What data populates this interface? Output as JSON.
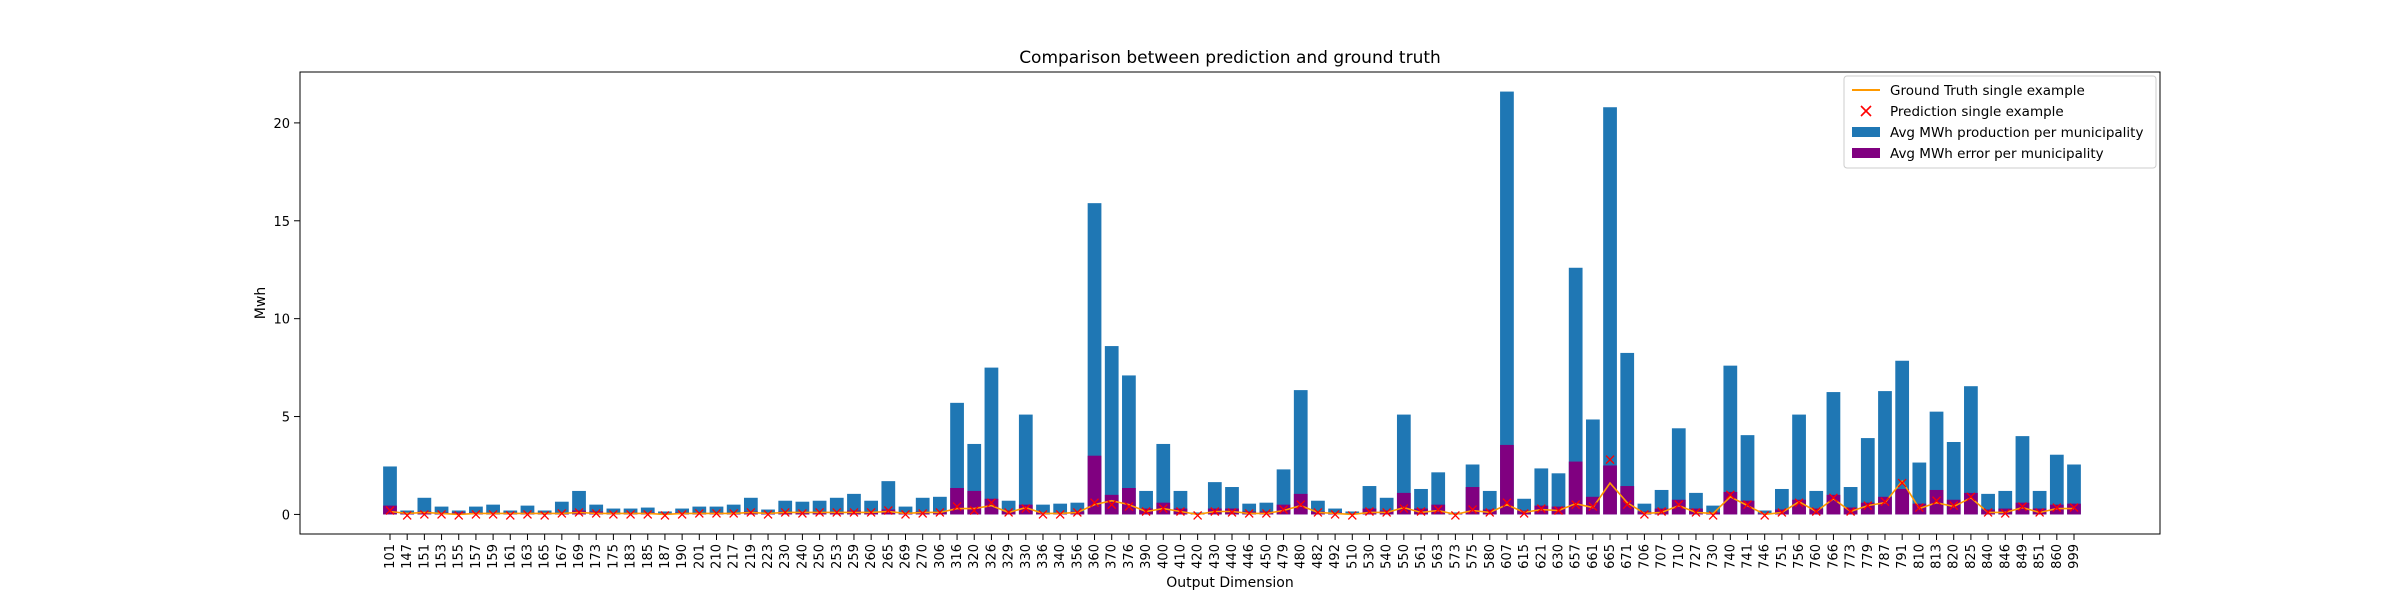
{
  "chart_data": {
    "type": "bar",
    "title": "Comparison between prediction and ground truth",
    "xlabel": "Output Dimension",
    "ylabel": "Mwh",
    "ylim": [
      -1,
      22.6
    ],
    "yticks": [
      0,
      5,
      10,
      15,
      20
    ],
    "grid": false,
    "legend_position": "top-right",
    "colors": {
      "production": "#1f77b4",
      "error": "#800080",
      "ground_truth": "#ff9900",
      "prediction": "#ff0000"
    },
    "categories": [
      "101",
      "147",
      "151",
      "153",
      "155",
      "157",
      "159",
      "161",
      "163",
      "165",
      "167",
      "169",
      "173",
      "175",
      "183",
      "185",
      "187",
      "190",
      "201",
      "210",
      "217",
      "219",
      "223",
      "230",
      "240",
      "250",
      "253",
      "259",
      "260",
      "265",
      "269",
      "270",
      "306",
      "316",
      "320",
      "326",
      "329",
      "330",
      "336",
      "340",
      "356",
      "360",
      "370",
      "376",
      "390",
      "400",
      "410",
      "420",
      "430",
      "440",
      "446",
      "450",
      "479",
      "480",
      "482",
      "492",
      "510",
      "530",
      "540",
      "550",
      "561",
      "563",
      "573",
      "575",
      "580",
      "607",
      "615",
      "621",
      "630",
      "657",
      "661",
      "665",
      "671",
      "706",
      "707",
      "710",
      "727",
      "730",
      "740",
      "741",
      "746",
      "751",
      "756",
      "760",
      "766",
      "773",
      "779",
      "787",
      "791",
      "810",
      "813",
      "820",
      "825",
      "840",
      "846",
      "849",
      "851",
      "860",
      "999"
    ],
    "series": [
      {
        "name": "Avg MWh production per municipality",
        "kind": "bar",
        "values": [
          2.45,
          0.2,
          0.85,
          0.4,
          0.2,
          0.4,
          0.5,
          0.2,
          0.45,
          0.2,
          0.65,
          1.2,
          0.5,
          0.3,
          0.3,
          0.35,
          0.15,
          0.3,
          0.4,
          0.4,
          0.5,
          0.85,
          0.25,
          0.7,
          0.65,
          0.7,
          0.85,
          1.05,
          0.7,
          1.7,
          0.4,
          0.85,
          0.9,
          5.7,
          3.6,
          7.5,
          0.7,
          5.1,
          0.5,
          0.55,
          0.6,
          15.9,
          8.6,
          7.1,
          1.2,
          3.6,
          1.2,
          0.1,
          1.65,
          1.4,
          0.55,
          0.6,
          2.3,
          6.35,
          0.7,
          0.3,
          0.15,
          1.45,
          0.85,
          5.1,
          1.3,
          2.15,
          0.1,
          2.55,
          1.2,
          21.6,
          0.8,
          2.35,
          2.1,
          12.6,
          4.85,
          20.8,
          8.25,
          0.55,
          1.25,
          4.4,
          1.1,
          0.45,
          7.6,
          4.05,
          0.2,
          1.3,
          5.1,
          1.2,
          6.25,
          1.4,
          3.9,
          6.3,
          7.85,
          2.65,
          5.25,
          3.7,
          6.55,
          1.05,
          1.2,
          4.0,
          1.2,
          3.05,
          2.55
        ]
      },
      {
        "name": "Avg MWh error per municipality",
        "kind": "bar",
        "values": [
          0.45,
          0.1,
          0.15,
          0.1,
          0.1,
          0.1,
          0.1,
          0.1,
          0.1,
          0.1,
          0.1,
          0.2,
          0.15,
          0.1,
          0.1,
          0.1,
          0.05,
          0.1,
          0.1,
          0.1,
          0.1,
          0.15,
          0.1,
          0.15,
          0.15,
          0.15,
          0.15,
          0.2,
          0.15,
          0.25,
          0.1,
          0.15,
          0.15,
          1.35,
          1.2,
          0.8,
          0.2,
          0.5,
          0.1,
          0.1,
          0.15,
          3.0,
          1.0,
          1.35,
          0.3,
          0.6,
          0.3,
          0.05,
          0.3,
          0.3,
          0.15,
          0.15,
          0.5,
          1.05,
          0.15,
          0.1,
          0.05,
          0.3,
          0.2,
          1.1,
          0.3,
          0.5,
          0.05,
          1.4,
          0.25,
          3.55,
          0.2,
          0.45,
          0.4,
          2.7,
          0.9,
          2.5,
          1.45,
          0.15,
          0.3,
          0.75,
          0.3,
          0.1,
          1.15,
          0.7,
          0.05,
          0.25,
          0.75,
          0.3,
          1.0,
          0.35,
          0.6,
          0.9,
          1.3,
          0.55,
          1.25,
          0.75,
          1.1,
          0.25,
          0.3,
          0.6,
          0.3,
          0.5,
          0.55
        ]
      },
      {
        "name": "Ground Truth single example",
        "kind": "line",
        "values": [
          0.15,
          0.05,
          0.1,
          0.05,
          0.0,
          0.05,
          0.05,
          0.05,
          0.05,
          0.05,
          0.05,
          0.1,
          0.05,
          0.05,
          0.05,
          0.05,
          0.0,
          0.05,
          0.05,
          0.05,
          0.05,
          0.1,
          0.05,
          0.1,
          0.1,
          0.1,
          0.1,
          0.1,
          0.1,
          0.15,
          0.05,
          0.1,
          0.1,
          0.3,
          0.3,
          0.45,
          0.1,
          0.35,
          0.05,
          0.05,
          0.1,
          0.5,
          0.7,
          0.5,
          0.15,
          0.3,
          0.15,
          0.0,
          0.15,
          0.15,
          0.05,
          0.05,
          0.2,
          0.45,
          0.1,
          0.05,
          0.0,
          0.1,
          0.1,
          0.35,
          0.1,
          0.2,
          0.0,
          0.2,
          0.1,
          0.5,
          0.1,
          0.25,
          0.2,
          0.55,
          0.35,
          1.6,
          0.6,
          0.05,
          0.1,
          0.45,
          0.1,
          0.05,
          0.9,
          0.45,
          0.0,
          0.1,
          0.65,
          0.15,
          0.8,
          0.15,
          0.45,
          0.6,
          1.7,
          0.3,
          0.6,
          0.4,
          0.85,
          0.1,
          0.1,
          0.35,
          0.1,
          0.3,
          0.3
        ]
      },
      {
        "name": "Prediction single example",
        "kind": "scatter",
        "values": [
          0.2,
          -0.05,
          0.0,
          0.0,
          -0.05,
          0.0,
          0.0,
          -0.05,
          0.0,
          -0.05,
          0.05,
          0.1,
          0.05,
          0.0,
          0.0,
          0.0,
          -0.05,
          0.0,
          0.05,
          0.05,
          0.05,
          0.1,
          0.0,
          0.1,
          0.05,
          0.1,
          0.1,
          0.1,
          0.1,
          0.2,
          0.0,
          0.05,
          0.1,
          0.4,
          0.2,
          0.6,
          0.1,
          0.3,
          0.0,
          0.0,
          0.1,
          0.6,
          0.5,
          0.4,
          0.15,
          0.3,
          0.15,
          -0.05,
          0.15,
          0.1,
          0.05,
          0.05,
          0.25,
          0.5,
          0.1,
          0.0,
          -0.05,
          0.15,
          0.1,
          0.3,
          0.15,
          0.25,
          -0.05,
          0.25,
          0.1,
          0.6,
          0.05,
          0.3,
          0.2,
          0.5,
          0.4,
          2.8,
          0.5,
          0.0,
          0.15,
          0.5,
          0.1,
          -0.05,
          1.0,
          0.5,
          -0.05,
          0.1,
          0.6,
          0.15,
          0.85,
          0.15,
          0.45,
          0.65,
          1.6,
          0.35,
          0.7,
          0.45,
          0.9,
          0.1,
          0.05,
          0.4,
          0.1,
          0.35,
          0.35
        ]
      }
    ],
    "legend": [
      "Ground Truth single example",
      "Prediction single example",
      "Avg MWh production per municipality",
      "Avg MWh error per municipality"
    ]
  }
}
